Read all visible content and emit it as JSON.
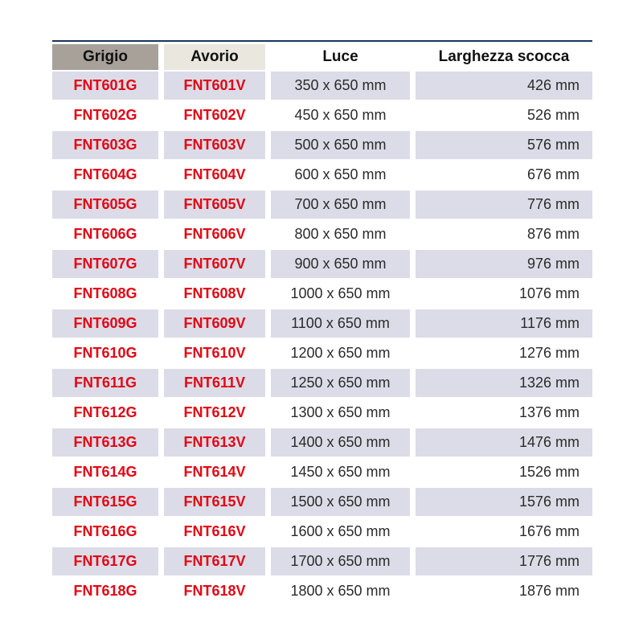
{
  "table": {
    "columns": [
      {
        "key": "grigio",
        "label": "Grigio"
      },
      {
        "key": "avorio",
        "label": "Avorio"
      },
      {
        "key": "luce",
        "label": "Luce"
      },
      {
        "key": "larghezza",
        "label": "Larghezza scocca"
      }
    ],
    "rows": [
      {
        "grigio": "FNT601G",
        "avorio": "FNT601V",
        "luce": "350 x 650 mm",
        "larghezza": "426 mm"
      },
      {
        "grigio": "FNT602G",
        "avorio": "FNT602V",
        "luce": "450 x 650 mm",
        "larghezza": "526 mm"
      },
      {
        "grigio": "FNT603G",
        "avorio": "FNT603V",
        "luce": "500 x 650 mm",
        "larghezza": "576 mm"
      },
      {
        "grigio": "FNT604G",
        "avorio": "FNT604V",
        "luce": "600 x 650 mm",
        "larghezza": "676 mm"
      },
      {
        "grigio": "FNT605G",
        "avorio": "FNT605V",
        "luce": "700 x 650 mm",
        "larghezza": "776 mm"
      },
      {
        "grigio": "FNT606G",
        "avorio": "FNT606V",
        "luce": "800 x 650 mm",
        "larghezza": "876 mm"
      },
      {
        "grigio": "FNT607G",
        "avorio": "FNT607V",
        "luce": "900 x 650 mm",
        "larghezza": "976 mm"
      },
      {
        "grigio": "FNT608G",
        "avorio": "FNT608V",
        "luce": "1000 x 650 mm",
        "larghezza": "1076 mm"
      },
      {
        "grigio": "FNT609G",
        "avorio": "FNT609V",
        "luce": "1100 x 650 mm",
        "larghezza": "1176 mm"
      },
      {
        "grigio": "FNT610G",
        "avorio": "FNT610V",
        "luce": "1200 x 650 mm",
        "larghezza": "1276 mm"
      },
      {
        "grigio": "FNT611G",
        "avorio": "FNT611V",
        "luce": "1250 x 650 mm",
        "larghezza": "1326 mm"
      },
      {
        "grigio": "FNT612G",
        "avorio": "FNT612V",
        "luce": "1300 x 650 mm",
        "larghezza": "1376 mm"
      },
      {
        "grigio": "FNT613G",
        "avorio": "FNT613V",
        "luce": "1400 x 650 mm",
        "larghezza": "1476 mm"
      },
      {
        "grigio": "FNT614G",
        "avorio": "FNT614V",
        "luce": "1450 x 650 mm",
        "larghezza": "1526 mm"
      },
      {
        "grigio": "FNT615G",
        "avorio": "FNT615V",
        "luce": "1500 x 650 mm",
        "larghezza": "1576 mm"
      },
      {
        "grigio": "FNT616G",
        "avorio": "FNT616V",
        "luce": "1600 x 650 mm",
        "larghezza": "1676 mm"
      },
      {
        "grigio": "FNT617G",
        "avorio": "FNT617V",
        "luce": "1700 x 650 mm",
        "larghezza": "1776 mm"
      },
      {
        "grigio": "FNT618G",
        "avorio": "FNT618V",
        "luce": "1800 x 650 mm",
        "larghezza": "1876 mm"
      }
    ]
  },
  "colors": {
    "row_shade": "#dbdce7",
    "header_grigio_bg": "#a7a19a",
    "header_avorio_bg": "#eae7de",
    "code_red": "#e30613",
    "top_rule": "#17365d",
    "value_text": "#2b2b2b"
  }
}
